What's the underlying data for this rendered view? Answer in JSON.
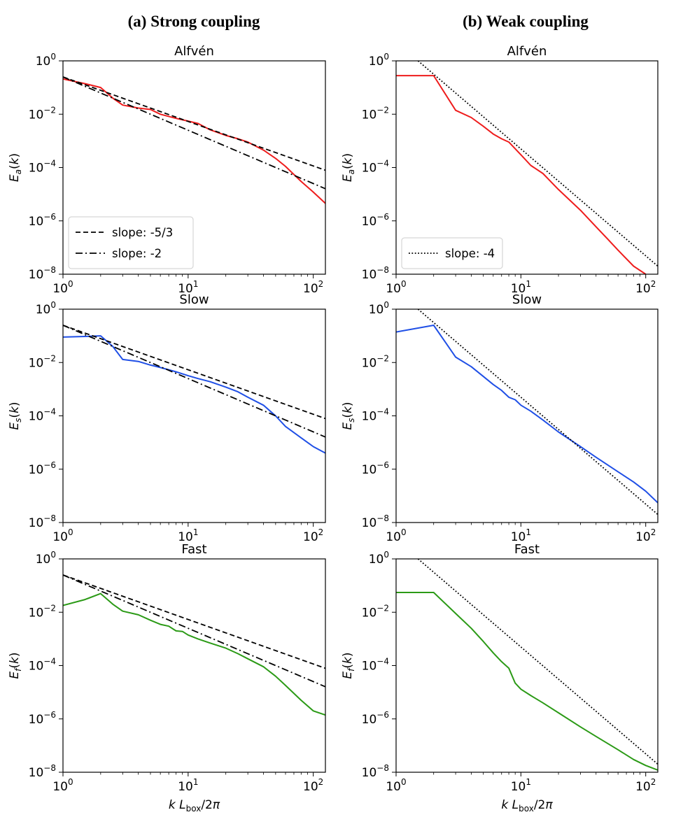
{
  "column_titles": [
    "(a) Strong coupling",
    "(b) Weak coupling"
  ],
  "colors": {
    "alfven": "#ee1c1c",
    "slow": "#1f4fe6",
    "fast": "#2b9a16",
    "reference": "#000000",
    "axes": "#000000"
  },
  "chart_data": [
    {
      "id": "strong-alfven",
      "type": "line",
      "title": "Alfvén",
      "ylabel": "E_a(k)",
      "y_sym": "E",
      "y_sub": "a",
      "xlabel": "",
      "xlim": [
        1,
        125
      ],
      "ylim": [
        1e-08,
        1
      ],
      "xscale": "log",
      "yscale": "log",
      "x_ticks": [
        "10^0",
        "10^1",
        "10^2"
      ],
      "y_ticks": [
        "10^-8",
        "10^-6",
        "10^-4",
        "10^-2",
        "10^0"
      ],
      "series": [
        {
          "name": "spectrum",
          "color": "#ee1c1c",
          "style": "solid",
          "x": [
            1,
            1.5,
            2,
            2.5,
            3,
            4,
            5,
            6,
            8,
            10,
            12,
            15,
            20,
            25,
            30,
            40,
            50,
            60,
            80,
            100,
            125
          ],
          "y": [
            0.21,
            0.14,
            0.1,
            0.04,
            0.022,
            0.017,
            0.015,
            0.01,
            0.007,
            0.0055,
            0.0045,
            0.0026,
            0.0016,
            0.0012,
            0.0009,
            0.00045,
            0.00022,
            0.00011,
            3e-05,
            1.2e-05,
            4.5e-06
          ]
        },
        {
          "name": "slope: -5/3",
          "color": "#000000",
          "style": "dashed",
          "x": [
            1,
            125
          ],
          "y": [
            0.25,
            7.9e-05
          ]
        },
        {
          "name": "slope: -2",
          "color": "#000000",
          "style": "dashdot",
          "x": [
            1,
            125
          ],
          "y": [
            0.25,
            1.6e-05
          ]
        }
      ],
      "legend": {
        "position": "lower-left",
        "entries": [
          {
            "label": "slope: -5/3",
            "style": "dashed"
          },
          {
            "label": "slope: -2",
            "style": "dashdot"
          }
        ]
      }
    },
    {
      "id": "weak-alfven",
      "type": "line",
      "title": "Alfvén",
      "ylabel": "E_a(k)",
      "y_sym": "E",
      "y_sub": "a",
      "xlabel": "",
      "xlim": [
        1,
        125
      ],
      "ylim": [
        1e-08,
        1
      ],
      "xscale": "log",
      "yscale": "log",
      "x_ticks": [
        "10^0",
        "10^1",
        "10^2"
      ],
      "y_ticks": [
        "10^-8",
        "10^-6",
        "10^-4",
        "10^-2",
        "10^0"
      ],
      "series": [
        {
          "name": "spectrum",
          "color": "#ee1c1c",
          "style": "solid",
          "x": [
            1,
            2,
            3,
            4,
            5,
            6,
            7,
            8,
            10,
            12,
            15,
            20,
            30,
            40,
            50,
            60,
            80,
            100
          ],
          "y": [
            0.28,
            0.28,
            0.014,
            0.0075,
            0.0035,
            0.0018,
            0.0012,
            0.0009,
            0.0003,
            0.00012,
            6e-05,
            1.5e-05,
            2.5e-06,
            6e-07,
            2e-07,
            8e-08,
            2e-08,
            1e-08
          ]
        },
        {
          "name": "slope: -4",
          "color": "#000000",
          "style": "dotted",
          "x": [
            1.5,
            125
          ],
          "y": [
            1,
            2e-08
          ]
        }
      ],
      "legend": {
        "position": "lower-left",
        "entries": [
          {
            "label": "slope: -4",
            "style": "dotted"
          }
        ]
      }
    },
    {
      "id": "strong-slow",
      "type": "line",
      "title": "Slow",
      "ylabel": "E_s(k)",
      "y_sym": "E",
      "y_sub": "s",
      "xlabel": "",
      "xlim": [
        1,
        125
      ],
      "ylim": [
        1e-08,
        1
      ],
      "xscale": "log",
      "yscale": "log",
      "x_ticks": [
        "10^0",
        "10^1",
        "10^2"
      ],
      "y_ticks": [
        "10^-8",
        "10^-6",
        "10^-4",
        "10^-2",
        "10^0"
      ],
      "series": [
        {
          "name": "spectrum",
          "color": "#1f4fe6",
          "style": "solid",
          "x": [
            1,
            1.5,
            2,
            2.5,
            3,
            4,
            5,
            6,
            8,
            10,
            12,
            15,
            20,
            25,
            30,
            40,
            50,
            60,
            80,
            100,
            125
          ],
          "y": [
            0.09,
            0.095,
            0.1,
            0.04,
            0.013,
            0.011,
            0.008,
            0.0065,
            0.0045,
            0.0032,
            0.0025,
            0.0019,
            0.0012,
            0.0008,
            0.0005,
            0.00025,
            0.0001,
            4e-05,
            1.5e-05,
            7e-06,
            4e-06
          ]
        },
        {
          "name": "slope: -5/3",
          "color": "#000000",
          "style": "dashed",
          "x": [
            1,
            125
          ],
          "y": [
            0.25,
            7.9e-05
          ]
        },
        {
          "name": "slope: -2",
          "color": "#000000",
          "style": "dashdot",
          "x": [
            1,
            125
          ],
          "y": [
            0.25,
            1.6e-05
          ]
        }
      ],
      "legend": null
    },
    {
      "id": "weak-slow",
      "type": "line",
      "title": "Slow",
      "ylabel": "E_s(k)",
      "y_sym": "E",
      "y_sub": "s",
      "xlabel": "",
      "xlim": [
        1,
        125
      ],
      "ylim": [
        1e-08,
        1
      ],
      "xscale": "log",
      "yscale": "log",
      "x_ticks": [
        "10^0",
        "10^1",
        "10^2"
      ],
      "y_ticks": [
        "10^-8",
        "10^-6",
        "10^-4",
        "10^-2",
        "10^0"
      ],
      "series": [
        {
          "name": "spectrum",
          "color": "#1f4fe6",
          "style": "solid",
          "x": [
            1,
            2,
            3,
            4,
            5,
            6,
            7,
            8,
            9,
            10,
            12,
            15,
            20,
            30,
            40,
            60,
            80,
            100,
            125
          ],
          "y": [
            0.14,
            0.25,
            0.016,
            0.007,
            0.003,
            0.0015,
            0.0009,
            0.0005,
            0.0004,
            0.00025,
            0.00015,
            7e-05,
            2.5e-05,
            7e-06,
            2.8e-06,
            8e-07,
            3.3e-07,
            1.5e-07,
            5.5e-08
          ]
        },
        {
          "name": "slope: -4",
          "color": "#000000",
          "style": "dotted",
          "x": [
            1.5,
            125
          ],
          "y": [
            1,
            2e-08
          ]
        }
      ],
      "legend": null
    },
    {
      "id": "strong-fast",
      "type": "line",
      "title": "Fast",
      "ylabel": "E_f(k)",
      "y_sym": "E",
      "y_sub": "f",
      "xlabel": "k L_box/2π",
      "xlim": [
        1,
        125
      ],
      "ylim": [
        1e-08,
        1
      ],
      "xscale": "log",
      "yscale": "log",
      "x_ticks": [
        "10^0",
        "10^1",
        "10^2"
      ],
      "y_ticks": [
        "10^-8",
        "10^-6",
        "10^-4",
        "10^-2",
        "10^0"
      ],
      "series": [
        {
          "name": "spectrum",
          "color": "#2b9a16",
          "style": "solid",
          "x": [
            1,
            1.5,
            2,
            2.5,
            3,
            4,
            5,
            6,
            7,
            8,
            9,
            10,
            12,
            15,
            20,
            25,
            30,
            40,
            50,
            60,
            80,
            100,
            125
          ],
          "y": [
            0.018,
            0.03,
            0.05,
            0.02,
            0.011,
            0.008,
            0.005,
            0.0035,
            0.003,
            0.002,
            0.0019,
            0.0014,
            0.001,
            0.0007,
            0.00045,
            0.00028,
            0.00018,
            9e-05,
            4e-05,
            1.8e-05,
            5e-06,
            2e-06,
            1.4e-06
          ]
        },
        {
          "name": "slope: -5/3",
          "color": "#000000",
          "style": "dashed",
          "x": [
            1,
            125
          ],
          "y": [
            0.25,
            7.9e-05
          ]
        },
        {
          "name": "slope: -2",
          "color": "#000000",
          "style": "dashdot",
          "x": [
            1,
            125
          ],
          "y": [
            0.25,
            1.6e-05
          ]
        }
      ],
      "legend": null
    },
    {
      "id": "weak-fast",
      "type": "line",
      "title": "Fast",
      "ylabel": "E_f(k)",
      "y_sym": "E",
      "y_sub": "f",
      "xlabel": "k L_box/2π",
      "xlim": [
        1,
        125
      ],
      "ylim": [
        1e-08,
        1
      ],
      "xscale": "log",
      "yscale": "log",
      "x_ticks": [
        "10^0",
        "10^1",
        "10^2"
      ],
      "y_ticks": [
        "10^-8",
        "10^-6",
        "10^-4",
        "10^-2",
        "10^0"
      ],
      "series": [
        {
          "name": "spectrum",
          "color": "#2b9a16",
          "style": "solid",
          "x": [
            1,
            2,
            3,
            4,
            5,
            6,
            7,
            8,
            9,
            10,
            12,
            15,
            20,
            30,
            40,
            60,
            80,
            100,
            125
          ],
          "y": [
            0.055,
            0.055,
            0.009,
            0.0025,
            0.0008,
            0.0003,
            0.00014,
            8e-05,
            2.2e-05,
            1.3e-05,
            7.5e-06,
            4e-06,
            1.7e-06,
            5e-07,
            2.2e-07,
            7e-08,
            3e-08,
            1.8e-08,
            1.2e-08
          ]
        },
        {
          "name": "slope: -4",
          "color": "#000000",
          "style": "dotted",
          "x": [
            1.5,
            125
          ],
          "y": [
            1,
            2e-08
          ]
        }
      ],
      "legend": null
    }
  ]
}
